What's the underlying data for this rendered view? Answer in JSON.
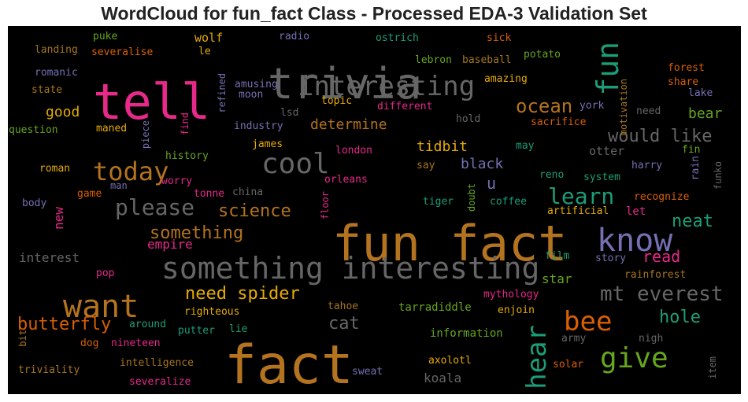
{
  "chart_data": {
    "type": "wordcloud",
    "title": "WordCloud for fun_fact Class - Processed EDA-3 Validation Set",
    "background": "#000000",
    "palette": {
      "orange": "#b4731e",
      "pink": "#e7298a",
      "gray": "#666666",
      "green": "#1b9e77",
      "purple": "#7570b3",
      "gold": "#e6ab02",
      "rust": "#d95f02",
      "olive": "#66a61e",
      "brown": "#a6761d"
    },
    "words": [
      {
        "text": "trivia",
        "color": "gray",
        "size": 54
      },
      {
        "text": "tell",
        "color": "pink",
        "size": 62
      },
      {
        "text": "fun fact",
        "color": "orange",
        "size": 62
      },
      {
        "text": "fact",
        "color": "orange",
        "size": 68
      },
      {
        "text": "something interesting",
        "color": "gray",
        "size": 38
      },
      {
        "text": "interesting",
        "color": "gray",
        "size": 34
      },
      {
        "text": "fun",
        "color": "green",
        "size": 38
      },
      {
        "text": "know",
        "color": "purple",
        "size": 40
      },
      {
        "text": "want",
        "color": "orange",
        "size": 40
      },
      {
        "text": "cool",
        "color": "gray",
        "size": 36
      },
      {
        "text": "today",
        "color": "orange",
        "size": 32
      },
      {
        "text": "please",
        "color": "gray",
        "size": 28
      },
      {
        "text": "bee",
        "color": "rust",
        "size": 34
      },
      {
        "text": "give",
        "color": "olive",
        "size": 36
      },
      {
        "text": "hear",
        "color": "green",
        "size": 34
      },
      {
        "text": "learn",
        "color": "green",
        "size": 28
      },
      {
        "text": "mt everest",
        "color": "gray",
        "size": 26
      },
      {
        "text": "ocean",
        "color": "orange",
        "size": 24
      },
      {
        "text": "would like",
        "color": "gray",
        "size": 22
      },
      {
        "text": "science",
        "color": "orange",
        "size": 22
      },
      {
        "text": "something",
        "color": "orange",
        "size": 22
      },
      {
        "text": "need spider",
        "color": "gold",
        "size": 22
      },
      {
        "text": "butterfly",
        "color": "rust",
        "size": 22
      },
      {
        "text": "neat",
        "color": "green",
        "size": 22
      },
      {
        "text": "hole",
        "color": "green",
        "size": 22
      },
      {
        "text": "read",
        "color": "pink",
        "size": 20
      },
      {
        "text": "cat",
        "color": "gray",
        "size": 22
      },
      {
        "text": "determine",
        "color": "orange",
        "size": 18
      },
      {
        "text": "u",
        "color": "purple",
        "size": 20
      },
      {
        "text": "black",
        "color": "purple",
        "size": 18
      },
      {
        "text": "tidbit",
        "color": "gold",
        "size": 18
      },
      {
        "text": "good",
        "color": "gold",
        "size": 18
      },
      {
        "text": "bear",
        "color": "olive",
        "size": 18
      },
      {
        "text": "star",
        "color": "olive",
        "size": 16
      },
      {
        "text": "empire",
        "color": "pink",
        "size": 16
      },
      {
        "text": "interest",
        "color": "gray",
        "size": 16
      },
      {
        "text": "new",
        "color": "pink",
        "size": 16
      },
      {
        "text": "koala",
        "color": "gray",
        "size": 16
      },
      {
        "text": "wolf",
        "color": "gold",
        "size": 15
      },
      {
        "text": "otter",
        "color": "gray",
        "size": 15
      },
      {
        "text": "let",
        "color": "pink",
        "size": 14
      },
      {
        "text": "fin",
        "color": "olive",
        "size": 13
      },
      {
        "text": "rain",
        "color": "purple",
        "size": 13
      },
      {
        "text": "funko",
        "color": "gray",
        "size": 12
      },
      {
        "text": "harry",
        "color": "purple",
        "size": 13
      },
      {
        "text": "system",
        "color": "green",
        "size": 13
      },
      {
        "text": "reno",
        "color": "green",
        "size": 13
      },
      {
        "text": "recognize",
        "color": "rust",
        "size": 13
      },
      {
        "text": "artificial",
        "color": "gold",
        "size": 13
      },
      {
        "text": "film",
        "color": "green",
        "size": 13
      },
      {
        "text": "story",
        "color": "purple",
        "size": 13
      },
      {
        "text": "rainforest",
        "color": "brown",
        "size": 13
      },
      {
        "text": "mythology",
        "color": "pink",
        "size": 13
      },
      {
        "text": "enjoin",
        "color": "gold",
        "size": 13
      },
      {
        "text": "army",
        "color": "gray",
        "size": 13
      },
      {
        "text": "nigh",
        "color": "gray",
        "size": 13
      },
      {
        "text": "solar",
        "color": "rust",
        "size": 13
      },
      {
        "text": "item",
        "color": "gray",
        "size": 12
      },
      {
        "text": "axolotl",
        "color": "gold",
        "size": 13
      },
      {
        "text": "information",
        "color": "olive",
        "size": 14
      },
      {
        "text": "tarradiddle",
        "color": "olive",
        "size": 14
      },
      {
        "text": "tahoe",
        "color": "brown",
        "size": 13
      },
      {
        "text": "sweat",
        "color": "purple",
        "size": 13
      },
      {
        "text": "intelligence",
        "color": "brown",
        "size": 13
      },
      {
        "text": "severalize",
        "color": "pink",
        "size": 13
      },
      {
        "text": "triviality",
        "color": "brown",
        "size": 13
      },
      {
        "text": "bit",
        "color": "brown",
        "size": 12
      },
      {
        "text": "dog",
        "color": "rust",
        "size": 13
      },
      {
        "text": "nineteen",
        "color": "pink",
        "size": 13
      },
      {
        "text": "around",
        "color": "green",
        "size": 13
      },
      {
        "text": "putter",
        "color": "green",
        "size": 13
      },
      {
        "text": "lie",
        "color": "green",
        "size": 13
      },
      {
        "text": "righteous",
        "color": "gold",
        "size": 13
      },
      {
        "text": "pop",
        "color": "pink",
        "size": 13
      },
      {
        "text": "body",
        "color": "purple",
        "size": 13
      },
      {
        "text": "game",
        "color": "rust",
        "size": 13
      },
      {
        "text": "man",
        "color": "purple",
        "size": 12
      },
      {
        "text": "worry",
        "color": "pink",
        "size": 13
      },
      {
        "text": "tonne",
        "color": "pink",
        "size": 13
      },
      {
        "text": "china",
        "color": "gray",
        "size": 13
      },
      {
        "text": "floor",
        "color": "pink",
        "size": 12
      },
      {
        "text": "orleans",
        "color": "pink",
        "size": 13
      },
      {
        "text": "tiger",
        "color": "green",
        "size": 13
      },
      {
        "text": "doubt",
        "color": "olive",
        "size": 12
      },
      {
        "text": "coffee",
        "color": "green",
        "size": 13
      },
      {
        "text": "roman",
        "color": "gold",
        "size": 13
      },
      {
        "text": "history",
        "color": "olive",
        "size": 13
      },
      {
        "text": "james",
        "color": "gold",
        "size": 13
      },
      {
        "text": "london",
        "color": "pink",
        "size": 13
      },
      {
        "text": "say",
        "color": "brown",
        "size": 13
      },
      {
        "text": "may",
        "color": "green",
        "size": 13
      },
      {
        "text": "question",
        "color": "olive",
        "size": 13
      },
      {
        "text": "maned",
        "color": "gold",
        "size": 13
      },
      {
        "text": "piece",
        "color": "purple",
        "size": 12
      },
      {
        "text": "industry",
        "color": "purple",
        "size": 13
      },
      {
        "text": "lsd",
        "color": "gray",
        "size": 13
      },
      {
        "text": "hold",
        "color": "gray",
        "size": 13
      },
      {
        "text": "sacrifice",
        "color": "rust",
        "size": 13
      },
      {
        "text": "need",
        "color": "gray",
        "size": 13
      },
      {
        "text": "lake",
        "color": "purple",
        "size": 13
      },
      {
        "text": "york",
        "color": "purple",
        "size": 13
      },
      {
        "text": "share",
        "color": "rust",
        "size": 13
      },
      {
        "text": "forest",
        "color": "rust",
        "size": 13
      },
      {
        "text": "motivation",
        "color": "brown",
        "size": 12
      },
      {
        "text": "amazing",
        "color": "gold",
        "size": 13
      },
      {
        "text": "potato",
        "color": "olive",
        "size": 13
      },
      {
        "text": "baseball",
        "color": "brown",
        "size": 13
      },
      {
        "text": "sick",
        "color": "rust",
        "size": 13
      },
      {
        "text": "lebron",
        "color": "olive",
        "size": 13
      },
      {
        "text": "ostrich",
        "color": "green",
        "size": 13
      },
      {
        "text": "radio",
        "color": "purple",
        "size": 13
      },
      {
        "text": "different",
        "color": "pink",
        "size": 13
      },
      {
        "text": "topic",
        "color": "gold",
        "size": 13
      },
      {
        "text": "moon",
        "color": "purple",
        "size": 13
      },
      {
        "text": "amusing",
        "color": "purple",
        "size": 13
      },
      {
        "text": "refined",
        "color": "purple",
        "size": 12
      },
      {
        "text": "le",
        "color": "gold",
        "size": 13
      },
      {
        "text": "puke",
        "color": "olive",
        "size": 13
      },
      {
        "text": "landing",
        "color": "brown",
        "size": 13
      },
      {
        "text": "severalise",
        "color": "rust",
        "size": 13
      },
      {
        "text": "romanic",
        "color": "purple",
        "size": 13
      },
      {
        "text": "state",
        "color": "brown",
        "size": 13
      },
      {
        "text": "find",
        "color": "pink",
        "size": 12
      }
    ]
  }
}
